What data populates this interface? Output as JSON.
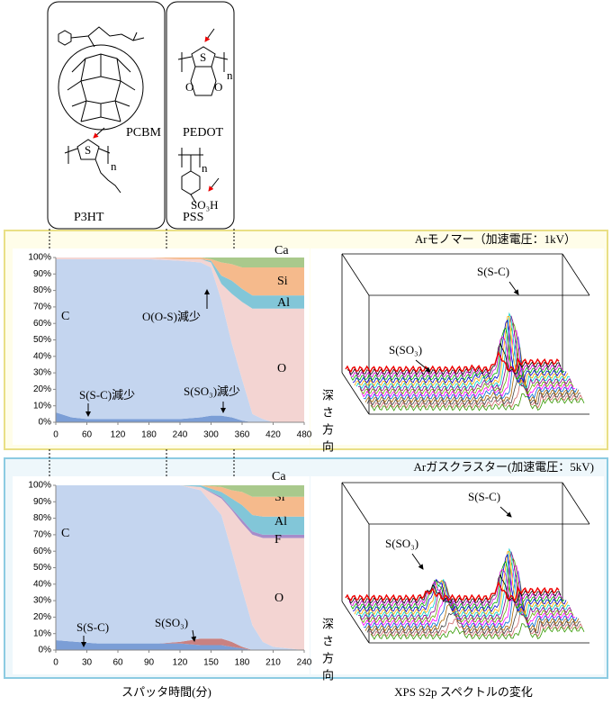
{
  "structures": {
    "pcbm": "PCBM",
    "p3ht": "P3HT",
    "pedot": "PEDOT",
    "pss": "PSS",
    "sulfur": "S",
    "oxygen": "O",
    "repeat": "n",
    "sulfonic": "SO₃H"
  },
  "panels": [
    {
      "title": "Arモノマー（加速電圧：1kV）",
      "spectrum_labels": [
        "S(S-C)",
        "S(SO₃)"
      ],
      "depth_label": "深さ方向"
    },
    {
      "title": "Arガスクラスター(加速電圧：5kV)",
      "spectrum_labels": [
        "S(S-C)",
        "S(SO₃)"
      ],
      "depth_label": "深さ方向"
    }
  ],
  "captions": {
    "left": "スパッタ時間(分)",
    "right": "XPS S2p スペクトルの変化"
  },
  "chart_data": [
    {
      "type": "area",
      "stacked": true,
      "x": [
        0,
        30,
        60,
        120,
        180,
        240,
        280,
        300,
        320,
        340,
        360,
        380,
        400,
        420,
        480
      ],
      "xlim": [
        0,
        480
      ],
      "xticks": [
        0,
        60,
        120,
        180,
        240,
        300,
        360,
        420,
        480
      ],
      "ylim": [
        0,
        100
      ],
      "yticks": [
        {
          "value": 0,
          "label": "0%"
        },
        {
          "value": 10,
          "label": "10%"
        },
        {
          "value": 20,
          "label": "20%"
        },
        {
          "value": 30,
          "label": "30%"
        },
        {
          "value": 40,
          "label": "40%"
        },
        {
          "value": 50,
          "label": "50%"
        },
        {
          "value": 60,
          "label": "60%"
        },
        {
          "value": 70,
          "label": "70%"
        },
        {
          "value": 80,
          "label": "80%"
        },
        {
          "value": 90,
          "label": "90%"
        },
        {
          "value": 100,
          "label": "100%"
        }
      ],
      "series": [
        {
          "color": "#7b9ed6",
          "values": [
            6,
            3,
            2,
            2,
            2,
            2,
            3,
            4,
            4,
            3,
            1,
            0,
            0,
            0,
            0
          ]
        },
        {
          "name": "C",
          "color": "#c4d5ef",
          "values": [
            93,
            96,
            97,
            97,
            97,
            96,
            94,
            90,
            70,
            45,
            25,
            5,
            2,
            0,
            0
          ]
        },
        {
          "name": "O",
          "color": "#f3d4d2",
          "values": [
            1,
            1,
            1,
            1,
            1,
            1,
            2,
            3,
            10,
            30,
            47,
            64,
            67,
            69,
            69
          ]
        },
        {
          "name": "Al",
          "color": "#82c6d8",
          "values": [
            0,
            0,
            0,
            0,
            0,
            0,
            0,
            1,
            5,
            8,
            8,
            8,
            8,
            8,
            8
          ]
        },
        {
          "name": "Si",
          "color": "#f5ba8c",
          "values": [
            0,
            0,
            0,
            0,
            0,
            1,
            1,
            1,
            8,
            10,
            13,
            17,
            17,
            17,
            17
          ]
        },
        {
          "name": "Ca",
          "color": "#a9c98c",
          "values": [
            0,
            0,
            0,
            0,
            0,
            0,
            0,
            1,
            3,
            4,
            6,
            6,
            6,
            6,
            6
          ]
        }
      ],
      "annotations": [
        "S(S-C)減少",
        "S(SO₃)減少",
        "O(O-S)減少"
      ]
    },
    {
      "type": "area",
      "stacked": true,
      "x": [
        0,
        20,
        40,
        80,
        100,
        120,
        140,
        160,
        170,
        180,
        190,
        200,
        210,
        240
      ],
      "xlim": [
        0,
        240
      ],
      "xticks": [
        0,
        30,
        60,
        90,
        120,
        150,
        180,
        210,
        240
      ],
      "ylim": [
        0,
        100
      ],
      "yticks": [
        {
          "value": 0,
          "label": "0%"
        },
        {
          "value": 10,
          "label": "10%"
        },
        {
          "value": 20,
          "label": "20%"
        },
        {
          "value": 30,
          "label": "30%"
        },
        {
          "value": 40,
          "label": "40%"
        },
        {
          "value": 50,
          "label": "50%"
        },
        {
          "value": 60,
          "label": "60%"
        },
        {
          "value": 70,
          "label": "70%"
        },
        {
          "value": 80,
          "label": "80%"
        },
        {
          "value": 90,
          "label": "90%"
        },
        {
          "value": 100,
          "label": "100%"
        }
      ],
      "series": [
        {
          "color": "#7b9ed6",
          "values": [
            6,
            5,
            4,
            4,
            4,
            4,
            3,
            3,
            2,
            1,
            0,
            0,
            0,
            0
          ]
        },
        {
          "color": "#c98181",
          "values": [
            0,
            0,
            0,
            0,
            0,
            1,
            4,
            4,
            3,
            1,
            0,
            0,
            0,
            0
          ]
        },
        {
          "name": "C",
          "color": "#c4d5ef",
          "values": [
            94,
            95,
            96,
            96,
            96,
            95,
            90,
            75,
            55,
            35,
            15,
            5,
            2,
            0
          ]
        },
        {
          "name": "O",
          "color": "#f3d4d2",
          "values": [
            0,
            0,
            0,
            0,
            0,
            0,
            2,
            10,
            25,
            40,
            55,
            63,
            66,
            68
          ]
        },
        {
          "name": "F",
          "color": "#a68cca",
          "values": [
            0,
            0,
            0,
            0,
            0,
            0,
            0,
            1,
            1,
            2,
            2,
            2,
            2,
            2
          ]
        },
        {
          "name": "Al",
          "color": "#82c6d8",
          "values": [
            0,
            0,
            0,
            0,
            0,
            0,
            1,
            3,
            6,
            9,
            10,
            11,
            11,
            11
          ]
        },
        {
          "name": "Si",
          "color": "#f5ba8c",
          "values": [
            0,
            0,
            0,
            0,
            0,
            0,
            0,
            3,
            5,
            8,
            11,
            12,
            12,
            12
          ]
        },
        {
          "name": "Ca",
          "color": "#a9c98c",
          "values": [
            0,
            0,
            0,
            0,
            0,
            0,
            0,
            1,
            3,
            4,
            7,
            7,
            7,
            7
          ]
        }
      ],
      "annotations": [
        "S(S-C)",
        "S(SO₃)"
      ]
    }
  ]
}
